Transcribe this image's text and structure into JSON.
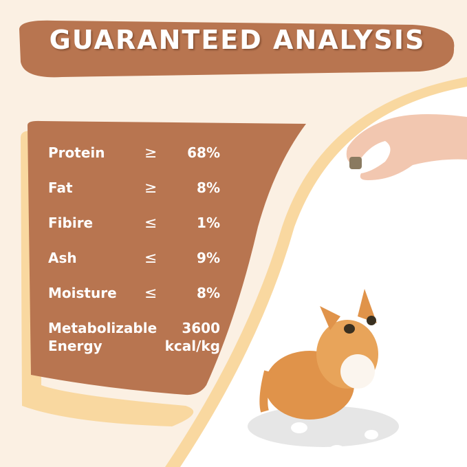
{
  "title": "GUARANTEED ANALYSIS",
  "colors": {
    "background": "#fbf0e3",
    "panel": "#b87550",
    "accent": "#f9d8a0",
    "title_text": "#ffffff"
  },
  "analysis": [
    {
      "label": "Protein",
      "operator": "≥",
      "value": "68%"
    },
    {
      "label": "Fat",
      "operator": "≥",
      "value": "8%"
    },
    {
      "label": "Fibire",
      "operator": "≤",
      "value": "1%"
    },
    {
      "label": "Ash",
      "operator": "≤",
      "value": "9%"
    },
    {
      "label": "Moisture",
      "operator": "≤",
      "value": "8%"
    }
  ],
  "energy": {
    "label_line1": "Metabolizable",
    "label_line2": "Energy",
    "value_line1": "3600",
    "value_line2": "kcal/kg"
  },
  "images": [
    "hand-holding-treat",
    "orange-kitten-looking-up"
  ]
}
